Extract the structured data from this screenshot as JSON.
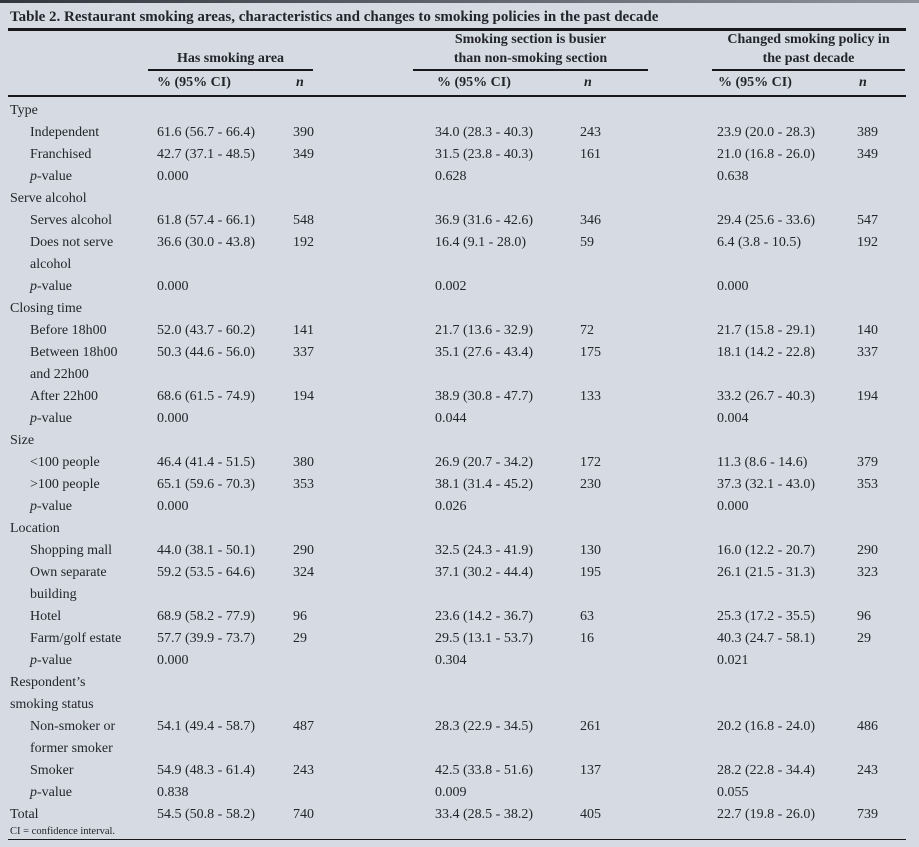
{
  "colors": {
    "background": "#d6dbe3",
    "text": "#24242b",
    "rule": "#17171c"
  },
  "table": {
    "title": "Table 2. Restaurant smoking areas, characteristics and changes to smoking policies in the past decade",
    "footnote": "CI = confidence interval.",
    "col_groups": [
      {
        "label": "Has smoking area"
      },
      {
        "label": "Smoking section is busier\nthan non-smoking section"
      },
      {
        "label": "Changed smoking policy in\nthe past decade"
      }
    ],
    "sub_headers": {
      "pct": "% (95% CI)",
      "n": "n"
    },
    "rows": [
      {
        "type": "group",
        "label": "Type"
      },
      {
        "type": "item",
        "label": "Independent",
        "c1": "61.6 (56.7 - 66.4)",
        "c1n": "390",
        "c2": "34.0 (28.3 - 40.3)",
        "c2n": "243",
        "c3": "23.9 (20.0 - 28.3)",
        "c3n": "389"
      },
      {
        "type": "item",
        "label": "Franchised",
        "c1": "42.7 (37.1 - 48.5)",
        "c1n": "349",
        "c2": "31.5 (23.8 - 40.3)",
        "c2n": "161",
        "c3": "21.0 (16.8 - 26.0)",
        "c3n": "349"
      },
      {
        "type": "pvalue",
        "label": "p-value",
        "c1": "0.000",
        "c2": "0.628",
        "c3": "0.638"
      },
      {
        "type": "group",
        "label": "Serve alcohol"
      },
      {
        "type": "item",
        "label": "Serves alcohol",
        "c1": "61.8 (57.4 - 66.1)",
        "c1n": "548",
        "c2": "36.9 (31.6 - 42.6)",
        "c2n": "346",
        "c3": "29.4 (25.6 - 33.6)",
        "c3n": "547"
      },
      {
        "type": "item",
        "label": "Does not serve\nalcohol",
        "c1": "36.6 (30.0 - 43.8)",
        "c1n": "192",
        "c2": "16.4 (9.1 - 28.0)",
        "c2n": "59",
        "c3": "6.4 (3.8 - 10.5)",
        "c3n": "192"
      },
      {
        "type": "pvalue",
        "label": "p-value",
        "c1": "0.000",
        "c2": "0.002",
        "c3": "0.000"
      },
      {
        "type": "group",
        "label": "Closing time"
      },
      {
        "type": "item",
        "label": "Before 18h00",
        "c1": "52.0 (43.7 - 60.2)",
        "c1n": "141",
        "c2": "21.7 (13.6 - 32.9)",
        "c2n": "72",
        "c3": "21.7 (15.8 - 29.1)",
        "c3n": "140"
      },
      {
        "type": "item",
        "label": "Between 18h00\nand 22h00",
        "c1": "50.3 (44.6 - 56.0)",
        "c1n": "337",
        "c2": "35.1 (27.6 - 43.4)",
        "c2n": "175",
        "c3": "18.1 (14.2 - 22.8)",
        "c3n": "337"
      },
      {
        "type": "item",
        "label": "After 22h00",
        "c1": "68.6 (61.5 - 74.9)",
        "c1n": "194",
        "c2": "38.9 (30.8 - 47.7)",
        "c2n": "133",
        "c3": "33.2 (26.7 - 40.3)",
        "c3n": "194"
      },
      {
        "type": "pvalue",
        "label": "p-value",
        "c1": "0.000",
        "c2": "0.044",
        "c3": "0.004"
      },
      {
        "type": "group",
        "label": "Size"
      },
      {
        "type": "item",
        "label": "<100 people",
        "c1": "46.4 (41.4 - 51.5)",
        "c1n": "380",
        "c2": "26.9 (20.7 - 34.2)",
        "c2n": "172",
        "c3": "11.3 (8.6 - 14.6)",
        "c3n": "379"
      },
      {
        "type": "item",
        "label": ">100 people",
        "c1": "65.1 (59.6 - 70.3)",
        "c1n": "353",
        "c2": "38.1 (31.4 - 45.2)",
        "c2n": "230",
        "c3": "37.3 (32.1 - 43.0)",
        "c3n": "353"
      },
      {
        "type": "pvalue",
        "label": "p-value",
        "c1": "0.000",
        "c2": "0.026",
        "c3": "0.000"
      },
      {
        "type": "group",
        "label": "Location"
      },
      {
        "type": "item",
        "label": "Shopping mall",
        "c1": "44.0 (38.1 - 50.1)",
        "c1n": "290",
        "c2": "32.5 (24.3 - 41.9)",
        "c2n": "130",
        "c3": "16.0 (12.2 - 20.7)",
        "c3n": "290"
      },
      {
        "type": "item",
        "label": "Own separate\nbuilding",
        "c1": "59.2 (53.5 - 64.6)",
        "c1n": "324",
        "c2": "37.1 (30.2 - 44.4)",
        "c2n": "195",
        "c3": "26.1 (21.5 - 31.3)",
        "c3n": "323"
      },
      {
        "type": "item",
        "label": "Hotel",
        "c1": "68.9 (58.2 - 77.9)",
        "c1n": "96",
        "c2": "23.6 (14.2 - 36.7)",
        "c2n": "63",
        "c3": "25.3 (17.2 - 35.5)",
        "c3n": "96"
      },
      {
        "type": "item",
        "label": "Farm/golf estate",
        "c1": "57.7 (39.9 - 73.7)",
        "c1n": "29",
        "c2": "29.5 (13.1 - 53.7)",
        "c2n": "16",
        "c3": "40.3 (24.7 - 58.1)",
        "c3n": "29"
      },
      {
        "type": "pvalue",
        "label": "p-value",
        "c1": "0.000",
        "c2": "0.304",
        "c3": "0.021"
      },
      {
        "type": "group",
        "label": "Respondent’s\nsmoking status"
      },
      {
        "type": "item",
        "label": "Non-smoker or\nformer smoker",
        "c1": "54.1 (49.4 - 58.7)",
        "c1n": "487",
        "c2": "28.3 (22.9 - 34.5)",
        "c2n": "261",
        "c3": "20.2 (16.8 - 24.0)",
        "c3n": "486"
      },
      {
        "type": "item",
        "label": "Smoker",
        "c1": "54.9 (48.3 - 61.4)",
        "c1n": "243",
        "c2": "42.5 (33.8 - 51.6)",
        "c2n": "137",
        "c3": "28.2 (22.8 - 34.4)",
        "c3n": "243"
      },
      {
        "type": "pvalue",
        "label": "p-value",
        "c1": "0.838",
        "c2": "0.009",
        "c3": "0.055"
      },
      {
        "type": "total",
        "label": "Total",
        "c1": "54.5 (50.8 - 58.2)",
        "c1n": "740",
        "c2": "33.4 (28.5 - 38.2)",
        "c2n": "405",
        "c3": "22.7 (19.8 - 26.0)",
        "c3n": "739"
      }
    ]
  }
}
